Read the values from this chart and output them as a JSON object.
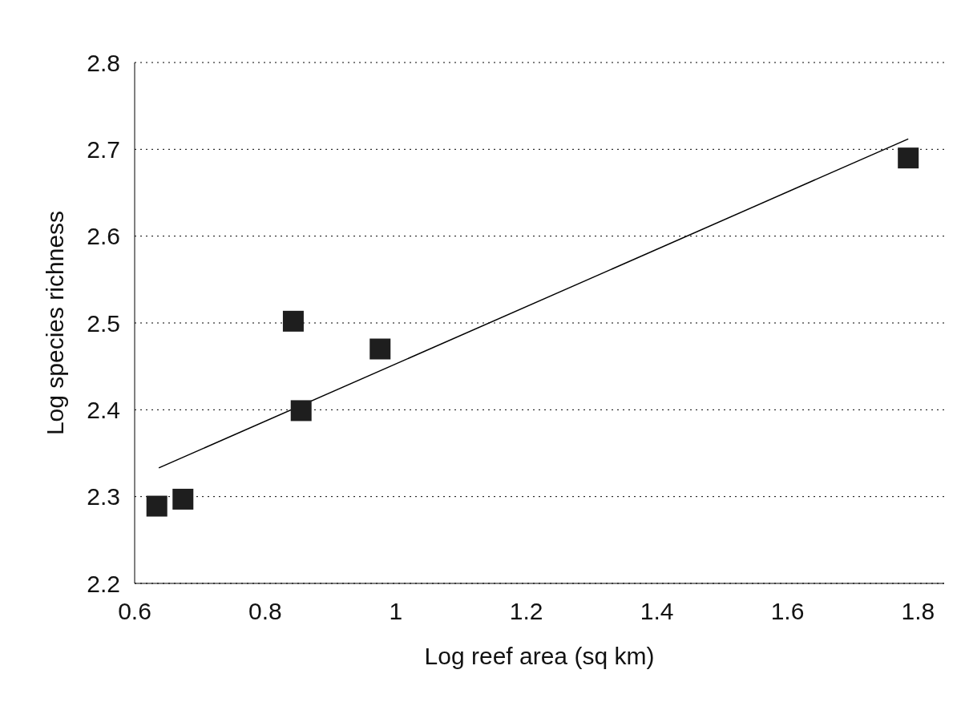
{
  "chart_data": {
    "type": "scatter",
    "xlabel": "Log reef area (sq km)",
    "ylabel": "Log species richness",
    "xlim": [
      0.6,
      1.84
    ],
    "xticks": [
      0.6,
      0.8,
      1,
      1.2,
      1.4,
      1.6,
      1.8
    ],
    "ylim": [
      2.2,
      2.8
    ],
    "yticks": [
      2.2,
      2.3,
      2.4,
      2.5,
      2.6,
      2.7,
      2.8
    ],
    "grid": "y",
    "marker": "square",
    "series": [
      {
        "color": "#1e1e1e",
        "x": [
          0.634,
          0.674,
          0.843,
          0.855,
          0.976,
          1.785
        ],
        "values": [
          2.289,
          2.297,
          2.502,
          2.399,
          2.47,
          2.69
        ]
      },
      {
        "type": "line",
        "color": "#000000",
        "marker": "none",
        "x": [
          0.637,
          1.785
        ],
        "values": [
          2.333,
          2.712
        ]
      }
    ]
  }
}
